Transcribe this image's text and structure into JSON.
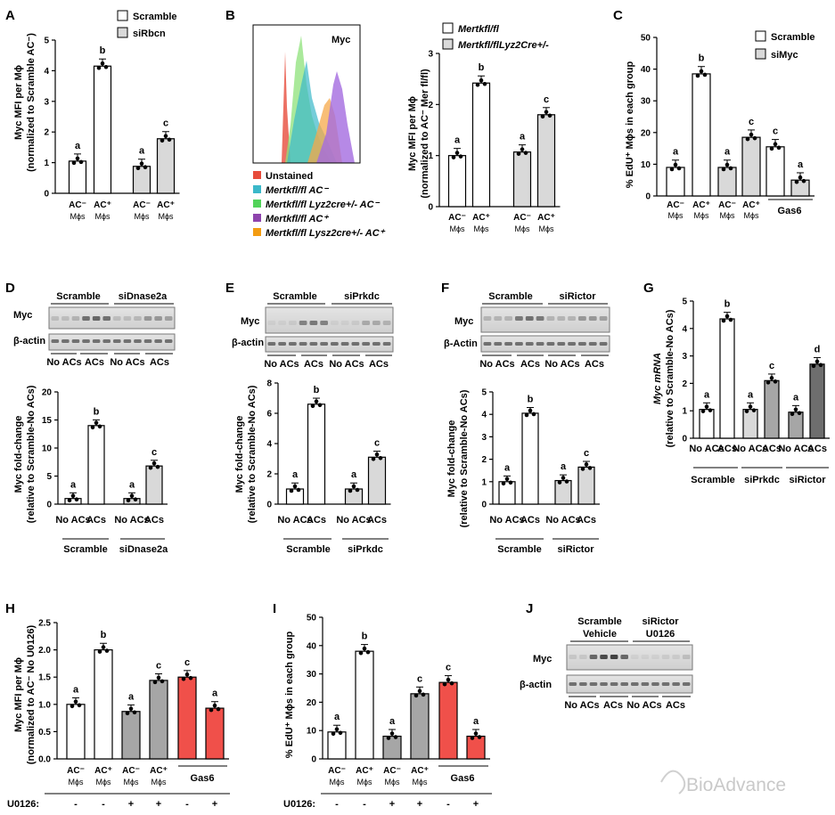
{
  "panel_letters": [
    "A",
    "B",
    "C",
    "D",
    "E",
    "F",
    "G",
    "H",
    "I",
    "J"
  ],
  "watermark": "BioAdvance",
  "colors": {
    "scramble": "#ffffff",
    "si": "#d9d9d9",
    "mid": "#a6a6a6",
    "dark": "#6e6e6e",
    "gas6": "#f0504a"
  },
  "A": {
    "ylabel1": "Myc MFI per Mϕ",
    "ylabel2": "(normalized to Scramble AC⁻)",
    "legend": [
      "Scramble",
      "siRbcn"
    ],
    "xlabels": [
      "AC⁻",
      "AC⁺",
      "AC⁻",
      "AC⁺"
    ],
    "sub": "Mϕs",
    "ticks": [
      "0",
      "1",
      "2",
      "3",
      "4",
      "5"
    ]
  },
  "B": {
    "hist_title": "Myc",
    "hist_legend": [
      "Unstained",
      "Mertkfl/fl AC⁻",
      "Mertkfl/fl Lyz2cre+/- AC⁻",
      "Mertkfl/fl AC⁺",
      "Mertkfl/fl Lysz2cre+/- AC⁺"
    ],
    "legend": [
      "Mertkfl/fl",
      "Mertkfl/flLyz2Cre+/-"
    ],
    "ylabel1": "Myc MFI per Mϕ",
    "ylabel2": "(normalized to AC⁻ Mer fl/fl)",
    "xlabels": [
      "AC⁻",
      "AC⁺",
      "AC⁻",
      "AC⁺"
    ],
    "sub": "Mϕs",
    "ticks": [
      "0",
      "1",
      "2",
      "3"
    ]
  },
  "C": {
    "ylabel": "% EdU⁺ Mϕs in each group",
    "legend": [
      "Scramble",
      "siMyc"
    ],
    "xlabels": [
      "AC⁻",
      "AC⁺",
      "AC⁻",
      "AC⁺"
    ],
    "sub": "Mϕs",
    "gas6": "Gas6",
    "ticks": [
      "0",
      "10",
      "20",
      "30",
      "40",
      "50"
    ]
  },
  "D": {
    "blot_groups": [
      "Scramble",
      "siDnase2a"
    ],
    "blot_rows": [
      "Myc",
      "β-actin"
    ],
    "lanes": [
      "No ACs",
      "ACs",
      "No ACs",
      "ACs"
    ],
    "ylabel1": "Myc fold-change",
    "ylabel2": "(relative to Scramble-No ACs)",
    "ticks": [
      "0",
      "5",
      "10",
      "15",
      "20"
    ]
  },
  "E": {
    "blot_groups": [
      "Scramble",
      "siPrkdc"
    ],
    "blot_rows": [
      "Myc",
      "β-actin"
    ],
    "lanes": [
      "No ACs",
      "ACs",
      "No ACs",
      "ACs"
    ],
    "ylabel1": "Myc fold-change",
    "ylabel2": "(relative to Scramble-No ACs)",
    "ticks": [
      "0",
      "2",
      "4",
      "6",
      "8"
    ]
  },
  "F": {
    "blot_groups": [
      "Scramble",
      "siRictor"
    ],
    "blot_rows": [
      "Myc",
      "β-Actin"
    ],
    "lanes": [
      "No ACs",
      "ACs",
      "No ACs",
      "ACs"
    ],
    "ylabel1": "Myc fold-change",
    "ylabel2": "(relative to Scramble-No ACs)",
    "ticks": [
      "0",
      "1",
      "2",
      "3",
      "4",
      "5"
    ]
  },
  "G": {
    "ylabel1": "Myc mRNA",
    "ylabel2": "(relative to Scramble-No ACs)",
    "groups": [
      "Scramble",
      "siPrkdc",
      "siRictor"
    ],
    "lanes": [
      "No ACs",
      "ACs"
    ],
    "ticks": [
      "0",
      "1",
      "2",
      "3",
      "4",
      "5"
    ]
  },
  "H": {
    "ylabel1": "Myc MFI per Mϕ",
    "ylabel2": "(normalized to AC⁻ No U0126)",
    "xlabels": [
      "AC⁻",
      "AC⁺",
      "AC⁻",
      "AC⁺"
    ],
    "sub": "Mϕs",
    "gas6": "Gas6",
    "u0126": "U0126:",
    "u_signs": [
      "-",
      "-",
      "+",
      "+",
      "-",
      "+"
    ],
    "ticks": [
      "0.0",
      "0.5",
      "1.0",
      "1.5",
      "2.0",
      "2.5"
    ]
  },
  "I": {
    "ylabel": "% EdU⁺ Mϕs in each group",
    "xlabels": [
      "AC⁻",
      "AC⁺",
      "AC⁻",
      "AC⁺"
    ],
    "sub": "Mϕs",
    "gas6": "Gas6",
    "u0126": "U0126:",
    "u_signs": [
      "-",
      "-",
      "+",
      "+",
      "-",
      "+"
    ],
    "ticks": [
      "0",
      "10",
      "20",
      "30",
      "40",
      "50"
    ]
  },
  "J": {
    "groups": [
      "Scramble",
      "siRictor"
    ],
    "treat": [
      "Vehicle",
      "U0126"
    ],
    "blot_rows": [
      "Myc",
      "β-actin"
    ],
    "lanes": [
      "No ACs",
      "ACs",
      "No ACs",
      "ACs"
    ]
  },
  "chart_data": [
    {
      "id": "A",
      "type": "bar",
      "ylim": [
        0,
        5
      ],
      "categories": [
        "Scramble AC-",
        "Scramble AC+",
        "siRbcn AC-",
        "siRbcn AC+"
      ],
      "values": [
        1.05,
        4.15,
        0.88,
        1.78
      ],
      "sig": [
        "a",
        "b",
        "a",
        "c"
      ]
    },
    {
      "id": "B",
      "type": "bar",
      "ylim": [
        0,
        3
      ],
      "categories": [
        "Mertkfl/fl AC-",
        "Mertkfl/fl AC+",
        "Lyz2Cre AC-",
        "Lyz2Cre AC+"
      ],
      "values": [
        1.0,
        2.42,
        1.07,
        1.8
      ],
      "sig": [
        "a",
        "b",
        "a",
        "c"
      ]
    },
    {
      "id": "C",
      "type": "bar",
      "ylim": [
        0,
        50
      ],
      "categories": [
        "Scramble AC-",
        "Scramble AC+",
        "siMyc AC-",
        "siMyc AC+",
        "Scramble Gas6",
        "siMyc Gas6"
      ],
      "values": [
        9,
        38.5,
        9,
        18.5,
        15.5,
        5
      ],
      "sig": [
        "a",
        "b",
        "a",
        "c",
        "c",
        "a"
      ]
    },
    {
      "id": "D",
      "type": "bar",
      "ylim": [
        0,
        20
      ],
      "categories": [
        "Scramble No ACs",
        "Scramble ACs",
        "siDnase2a No ACs",
        "siDnase2a ACs"
      ],
      "values": [
        1,
        14,
        1,
        6.8
      ],
      "sig": [
        "a",
        "b",
        "a",
        "c"
      ]
    },
    {
      "id": "E",
      "type": "bar",
      "ylim": [
        0,
        8
      ],
      "categories": [
        "Scramble No ACs",
        "Scramble ACs",
        "siPrkdc No ACs",
        "siPrkdc ACs"
      ],
      "values": [
        1,
        6.6,
        1,
        3.1
      ],
      "sig": [
        "a",
        "b",
        "a",
        "c"
      ]
    },
    {
      "id": "F",
      "type": "bar",
      "ylim": [
        0,
        5
      ],
      "categories": [
        "Scramble No ACs",
        "Scramble ACs",
        "siRictor No ACs",
        "siRictor ACs"
      ],
      "values": [
        1,
        4.05,
        1.05,
        1.65
      ],
      "sig": [
        "a",
        "b",
        "a",
        "c"
      ]
    },
    {
      "id": "G",
      "type": "bar",
      "ylim": [
        0,
        5
      ],
      "categories": [
        "Scramble No ACs",
        "Scramble ACs",
        "siPrkdc No ACs",
        "siPrkdc ACs",
        "siRictor No ACs",
        "siRictor ACs"
      ],
      "values": [
        1.05,
        4.35,
        1.05,
        2.1,
        0.95,
        2.7
      ],
      "sig": [
        "a",
        "b",
        "a",
        "c",
        "a",
        "d"
      ]
    },
    {
      "id": "H",
      "type": "bar",
      "ylim": [
        0,
        2.5
      ],
      "categories": [
        "AC- (-)",
        "AC+ (-)",
        "AC- (+)",
        "AC+ (+)",
        "Gas6 (-)",
        "Gas6 (+)"
      ],
      "values": [
        1.0,
        2.0,
        0.87,
        1.44,
        1.5,
        0.93
      ],
      "sig": [
        "a",
        "b",
        "a",
        "c",
        "c",
        "a"
      ]
    },
    {
      "id": "I",
      "type": "bar",
      "ylim": [
        0,
        50
      ],
      "categories": [
        "AC- (-)",
        "AC+ (-)",
        "AC- (+)",
        "AC+ (+)",
        "Gas6 (-)",
        "Gas6 (+)"
      ],
      "values": [
        9.5,
        38,
        8,
        23,
        27,
        8
      ],
      "sig": [
        "a",
        "b",
        "a",
        "c",
        "c",
        "a"
      ]
    }
  ]
}
